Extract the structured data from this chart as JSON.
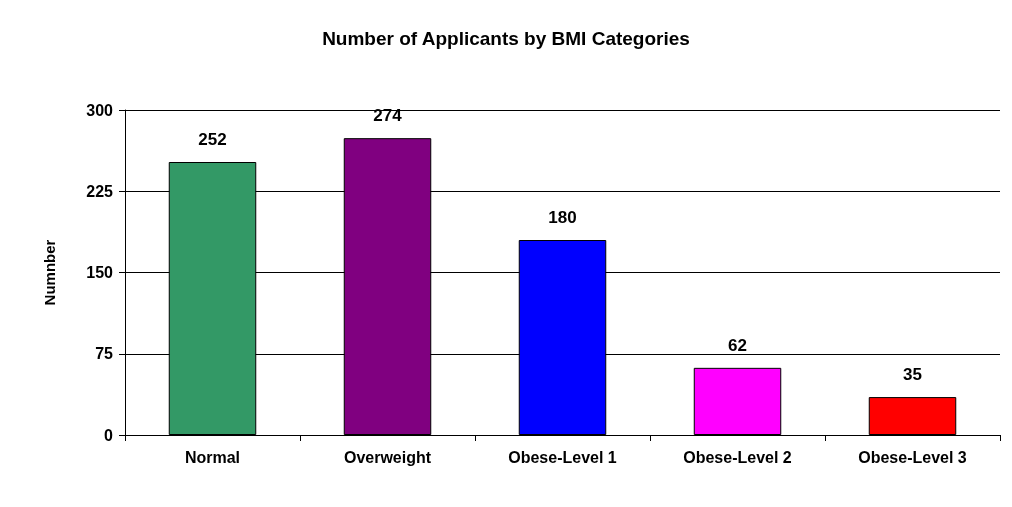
{
  "chart_data": {
    "type": "bar",
    "title": "Number of Applicants by BMI Categories",
    "ylabel": "Numnber",
    "categories": [
      "Normal",
      "Overweight",
      "Obese-Level 1",
      "Obese-Level 2",
      "Obese-Level 3"
    ],
    "values": [
      252,
      274,
      180,
      62,
      35
    ],
    "colors": [
      "#339966",
      "#800080",
      "#0000ff",
      "#ff00ff",
      "#ff0000"
    ],
    "ylim": [
      0,
      300
    ],
    "yticks": [
      0,
      75,
      150,
      225,
      300
    ],
    "grid": "y",
    "data_labels": true
  }
}
